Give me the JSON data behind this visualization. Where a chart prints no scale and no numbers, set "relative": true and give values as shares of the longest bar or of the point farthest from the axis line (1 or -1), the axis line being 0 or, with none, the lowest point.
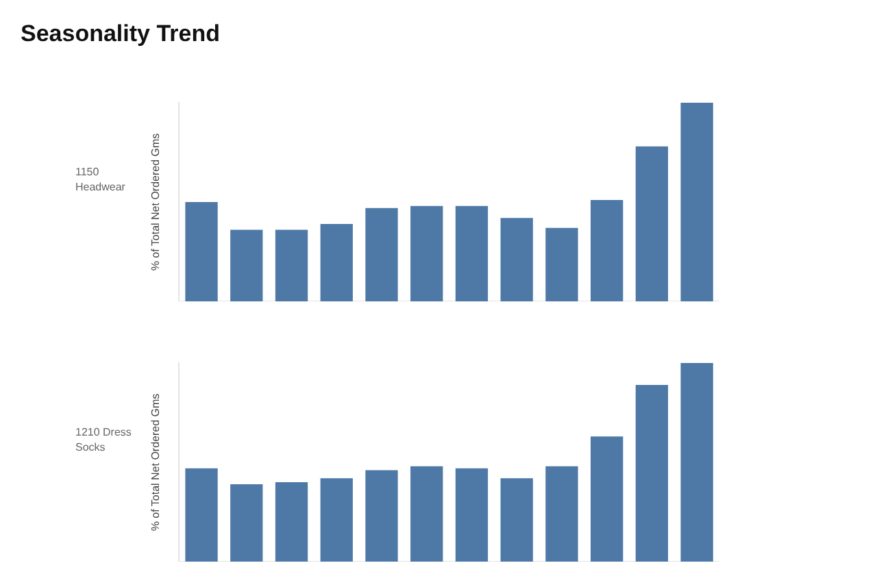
{
  "chart_data": [
    {
      "type": "bar",
      "title": "Seasonality Trend",
      "ylabel": "% of Total Net Ordered Gms",
      "annotations": [
        "1150\nHeadwear"
      ],
      "relative": true,
      "categories": [
        null,
        null,
        null,
        null,
        null,
        null,
        null,
        null,
        null,
        null,
        null,
        null
      ],
      "values": [
        0.5,
        0.36,
        0.36,
        0.39,
        0.47,
        0.48,
        0.48,
        0.42,
        0.37,
        0.51,
        0.78,
        1
      ],
      "color": "#4e79a7"
    },
    {
      "type": "bar",
      "ylabel": "% of Total Net Ordered Gms",
      "annotations": [
        "1210 Dress\nSocks"
      ],
      "relative": true,
      "categories": [
        null,
        null,
        null,
        null,
        null,
        null,
        null,
        null,
        null,
        null,
        null,
        null
      ],
      "values": [
        0.47,
        0.39,
        0.4,
        0.42,
        0.46,
        0.48,
        0.47,
        0.42,
        0.48,
        0.63,
        0.89,
        1
      ],
      "color": "#4e79a7"
    }
  ]
}
